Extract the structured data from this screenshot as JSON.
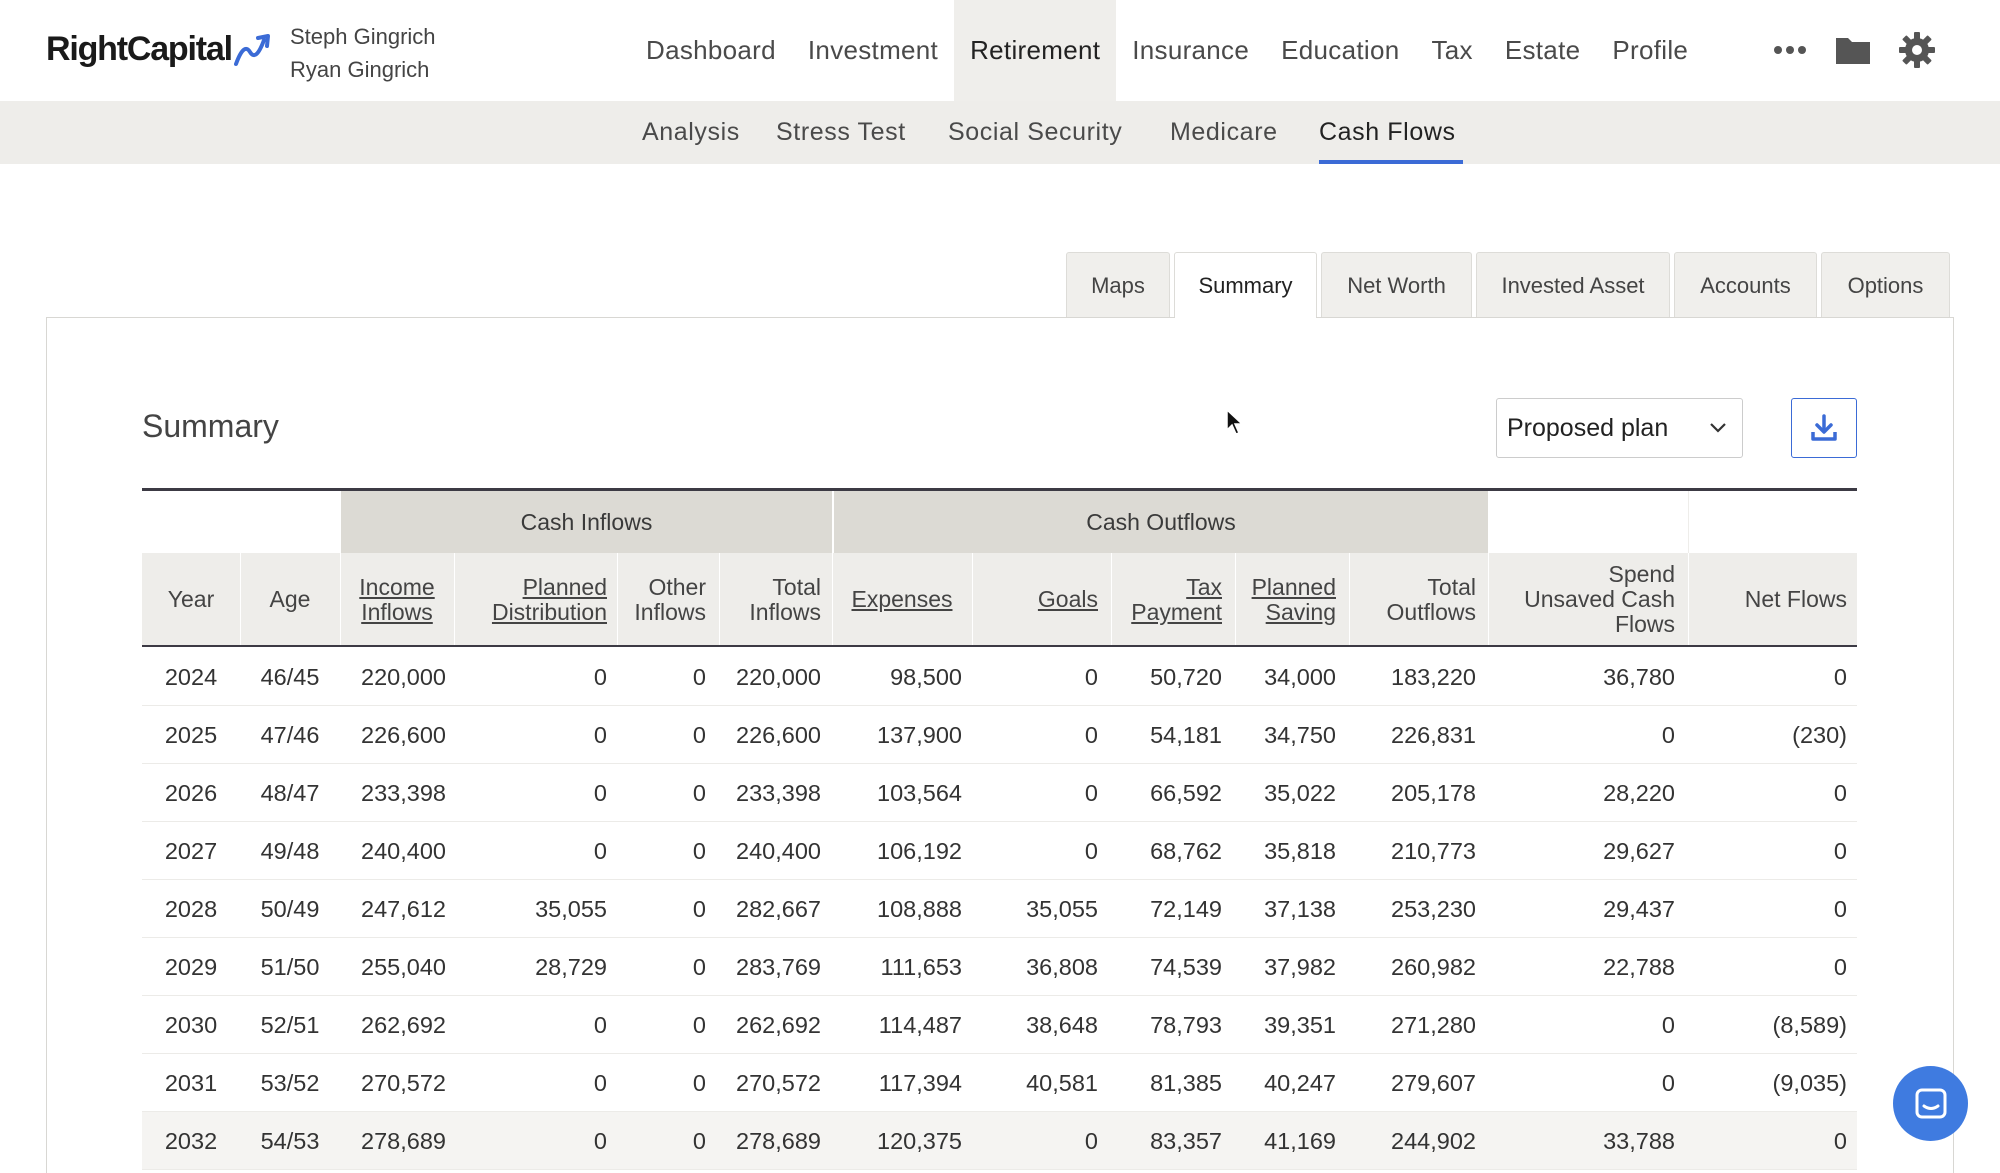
{
  "brand": {
    "logo_text": "RightCapital",
    "accent": "#3b6bd6"
  },
  "clients": {
    "line1": "Steph Gingrich",
    "line2": "Ryan Gingrich"
  },
  "main_nav": [
    "Dashboard",
    "Investment",
    "Retirement",
    "Insurance",
    "Education",
    "Tax",
    "Estate",
    "Profile"
  ],
  "main_nav_active": "Retirement",
  "nav_icons": [
    "more-dots-icon",
    "folder-icon",
    "gear-icon"
  ],
  "sub_nav": [
    "Analysis",
    "Stress Test",
    "Social Security",
    "Medicare",
    "Cash Flows"
  ],
  "sub_nav_active": "Cash Flows",
  "tabs": [
    "Maps",
    "Summary",
    "Net Worth",
    "Invested Asset",
    "Accounts",
    "Options"
  ],
  "tabs_active": "Summary",
  "summary": {
    "title": "Summary",
    "plan_select": "Proposed plan",
    "download_icon": "download-icon"
  },
  "table": {
    "groups": {
      "inflows": "Cash Inflows",
      "outflows": "Cash Outflows"
    },
    "headers": {
      "year": "Year",
      "age": "Age",
      "income_inflows": [
        "Income",
        "Inflows"
      ],
      "planned_distribution": [
        "Planned",
        "Distribution"
      ],
      "other_inflows": [
        "Other",
        "Inflows"
      ],
      "total_inflows": [
        "Total",
        "Inflows"
      ],
      "expenses": "Expenses",
      "goals": "Goals",
      "tax_payment": [
        "Tax",
        "Payment"
      ],
      "planned_saving": [
        "Planned",
        "Saving"
      ],
      "total_outflows": [
        "Total",
        "Outflows"
      ],
      "spend_unsaved": [
        "Spend",
        "Unsaved Cash",
        "Flows"
      ],
      "net_flows": "Net Flows"
    },
    "rows": [
      [
        "2024",
        "46/45",
        "220,000",
        "0",
        "0",
        "220,000",
        "98,500",
        "0",
        "50,720",
        "34,000",
        "183,220",
        "36,780",
        "0"
      ],
      [
        "2025",
        "47/46",
        "226,600",
        "0",
        "0",
        "226,600",
        "137,900",
        "0",
        "54,181",
        "34,750",
        "226,831",
        "0",
        "(230)"
      ],
      [
        "2026",
        "48/47",
        "233,398",
        "0",
        "0",
        "233,398",
        "103,564",
        "0",
        "66,592",
        "35,022",
        "205,178",
        "28,220",
        "0"
      ],
      [
        "2027",
        "49/48",
        "240,400",
        "0",
        "0",
        "240,400",
        "106,192",
        "0",
        "68,762",
        "35,818",
        "210,773",
        "29,627",
        "0"
      ],
      [
        "2028",
        "50/49",
        "247,612",
        "35,055",
        "0",
        "282,667",
        "108,888",
        "35,055",
        "72,149",
        "37,138",
        "253,230",
        "29,437",
        "0"
      ],
      [
        "2029",
        "51/50",
        "255,040",
        "28,729",
        "0",
        "283,769",
        "111,653",
        "36,808",
        "74,539",
        "37,982",
        "260,982",
        "22,788",
        "0"
      ],
      [
        "2030",
        "52/51",
        "262,692",
        "0",
        "0",
        "262,692",
        "114,487",
        "38,648",
        "78,793",
        "39,351",
        "271,280",
        "0",
        "(8,589)"
      ],
      [
        "2031",
        "53/52",
        "270,572",
        "0",
        "0",
        "270,572",
        "117,394",
        "40,581",
        "81,385",
        "40,247",
        "279,607",
        "0",
        "(9,035)"
      ],
      [
        "2032",
        "54/53",
        "278,689",
        "0",
        "0",
        "278,689",
        "120,375",
        "0",
        "83,357",
        "41,169",
        "244,902",
        "33,788",
        "0"
      ]
    ]
  }
}
